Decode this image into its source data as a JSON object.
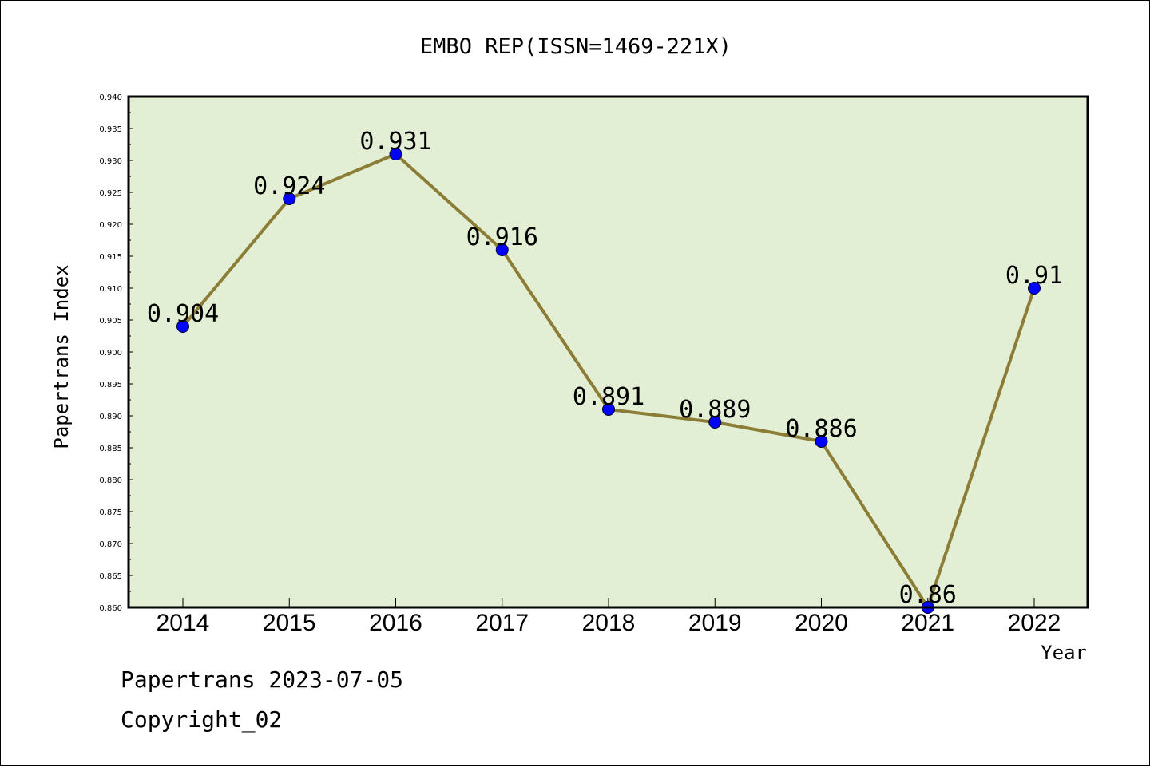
{
  "chart_data": {
    "type": "line",
    "title": "EMBO REP(ISSN=1469-221X)",
    "xlabel": "Year",
    "ylabel": "Papertrans Index",
    "x": [
      "2014",
      "2015",
      "2016",
      "2017",
      "2018",
      "2019",
      "2020",
      "2021",
      "2022"
    ],
    "values": [
      0.904,
      0.924,
      0.931,
      0.916,
      0.891,
      0.889,
      0.886,
      0.86,
      0.91
    ],
    "data_labels": [
      "0.904",
      "0.924",
      "0.931",
      "0.916",
      "0.891",
      "0.889",
      "0.886",
      "0.86",
      "0.91"
    ],
    "ylim": [
      0.86,
      0.94
    ],
    "yticks": [
      "0.860",
      "0.865",
      "0.870",
      "0.875",
      "0.880",
      "0.885",
      "0.890",
      "0.895",
      "0.900",
      "0.905",
      "0.910",
      "0.915",
      "0.920",
      "0.925",
      "0.930",
      "0.935",
      "0.940"
    ],
    "grid": false,
    "colors": {
      "line": "#8b7d35",
      "marker": "#0000ff",
      "plot_background": "#e2efd4"
    }
  },
  "footer": {
    "date_line": "Papertrans 2023-07-05",
    "copyright": "Copyright_02"
  }
}
